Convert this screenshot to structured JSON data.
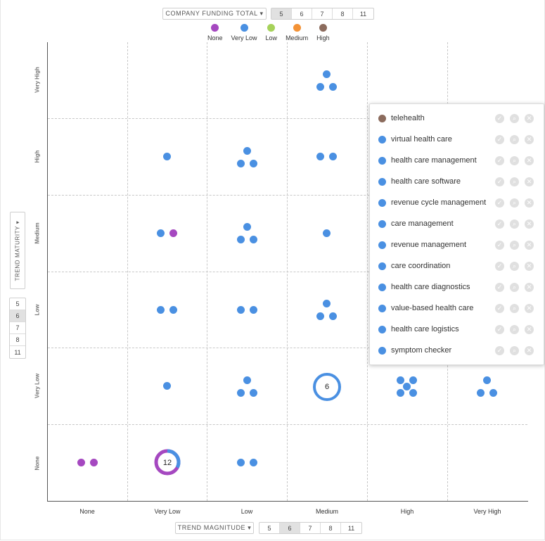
{
  "colors": {
    "none": "#a548c0",
    "very_low": "#4a90e2",
    "low": "#a6d25a",
    "medium": "#f39236",
    "high": "#8b6b5d"
  },
  "top_controls": {
    "funding_dropdown": "COMPANY FUNDING TOTAL ▾",
    "options": [
      "5",
      "6",
      "7",
      "8",
      "11"
    ],
    "selected": "5"
  },
  "legend": [
    {
      "label": "None",
      "color": "#a548c0"
    },
    {
      "label": "Very Low",
      "color": "#4a90e2"
    },
    {
      "label": "Low",
      "color": "#a6d25a"
    },
    {
      "label": "Medium",
      "color": "#f39236"
    },
    {
      "label": "High",
      "color": "#8b6b5d"
    }
  ],
  "y_axis": {
    "dropdown": "TREND MATURITY ▾",
    "options": [
      "5",
      "6",
      "7",
      "8",
      "11"
    ],
    "selected": "6",
    "labels": [
      "Very High",
      "High",
      "Medium",
      "Low",
      "Very Low",
      "None"
    ]
  },
  "x_axis": {
    "dropdown": "TREND MAGNITUDE ▾",
    "options": [
      "5",
      "6",
      "7",
      "8",
      "11"
    ],
    "selected": "6",
    "labels": [
      "None",
      "Very Low",
      "Low",
      "Medium",
      "High",
      "Very High"
    ]
  },
  "clusters": {
    "very_low_medium_count": "6",
    "none_very_low_count": "12"
  },
  "panel": {
    "items": [
      {
        "label": "telehealth",
        "color": "#8b6b5d"
      },
      {
        "label": "virtual health care",
        "color": "#4a90e2"
      },
      {
        "label": "health care management",
        "color": "#4a90e2"
      },
      {
        "label": "health care software",
        "color": "#4a90e2"
      },
      {
        "label": "revenue cycle management",
        "color": "#4a90e2"
      },
      {
        "label": "care management",
        "color": "#4a90e2"
      },
      {
        "label": "revenue management",
        "color": "#4a90e2"
      },
      {
        "label": "care coordination",
        "color": "#4a90e2"
      },
      {
        "label": "health care diagnostics",
        "color": "#4a90e2"
      },
      {
        "label": "value-based health care",
        "color": "#4a90e2"
      },
      {
        "label": "health care logistics",
        "color": "#4a90e2"
      },
      {
        "label": "symptom checker",
        "color": "#4a90e2"
      }
    ],
    "actions": {
      "check": "✓",
      "search": "⌕",
      "remove": "✕"
    }
  }
}
